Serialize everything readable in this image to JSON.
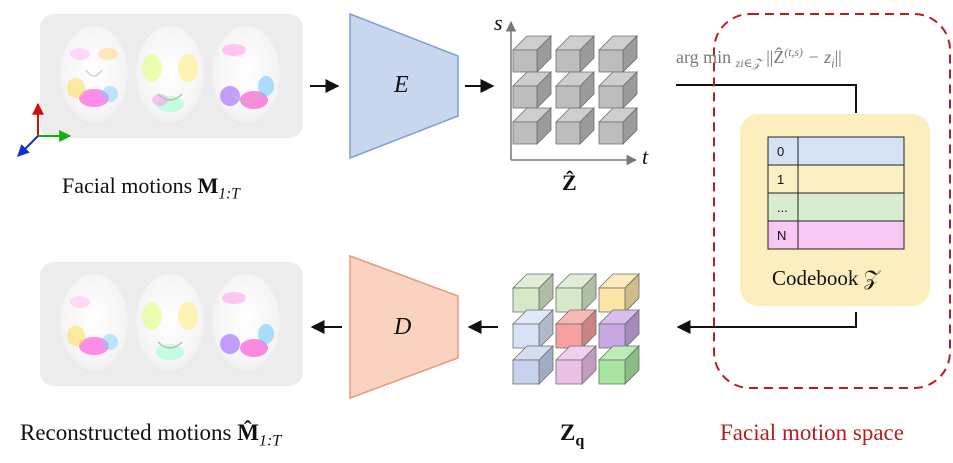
{
  "input": {
    "caption_text": "Facial motions ",
    "caption_symbol": "M",
    "caption_subscript": "1:T"
  },
  "encoder": {
    "label": "E"
  },
  "latent": {
    "symbol": "Ẑ",
    "axis_s": "s",
    "axis_t": "t"
  },
  "argmin": {
    "op": "arg min",
    "subscript": "zi∈𝒵",
    "expr_left": "||Ẑ",
    "expr_sup": "(t,s)",
    "expr_right": " − z",
    "expr_sub": "i",
    "expr_end": "||"
  },
  "codebook": {
    "rows": [
      "0",
      "1",
      "...",
      "N"
    ],
    "row_colors": [
      "#d6e2f5",
      "#fbefc4",
      "#d8ecd2",
      "#f8c8f4"
    ],
    "label": "Codebook 𝒵",
    "panel_color": "#fdeebf"
  },
  "motion_space": {
    "label": "Facial motion space",
    "color": "#b41e1e"
  },
  "quantized": {
    "symbol": "Z",
    "subscript": "q"
  },
  "decoder": {
    "label": "D"
  },
  "output": {
    "caption_text": "Reconstructed motions ",
    "caption_symbol": "M̂",
    "caption_subscript": "1:T"
  },
  "colors": {
    "encoder_fill": "#c8d6ee",
    "encoder_stroke": "#7f9fd2",
    "decoder_fill": "#f9d2c0",
    "decoder_stroke": "#e49a7b",
    "face_panel": "#ececec",
    "cube_gray": "#bdbdbd"
  }
}
